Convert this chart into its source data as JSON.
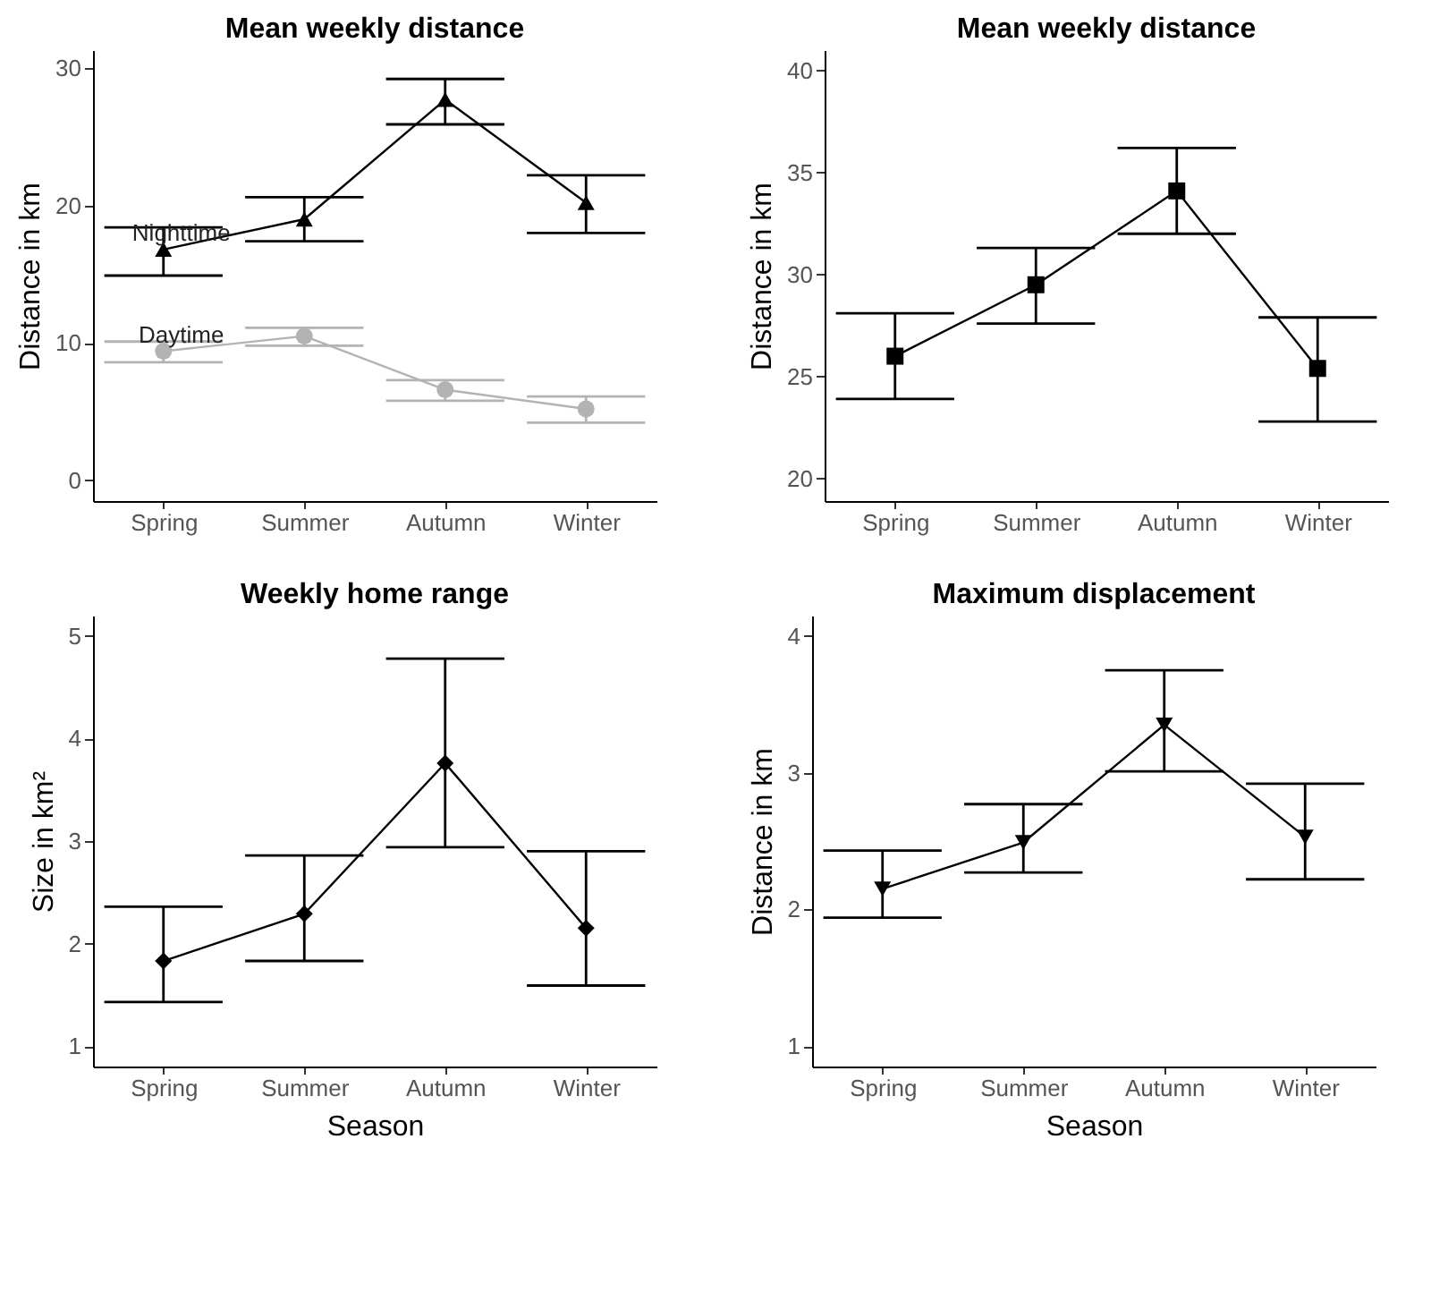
{
  "chart_data": [
    {
      "type": "line",
      "title": "Mean weekly distance",
      "ylabel": "Distance in km",
      "categories": [
        "Spring",
        "Summer",
        "Autumn",
        "Winter"
      ],
      "ylim": [
        -1.5,
        31.3
      ],
      "yticks": [
        0,
        10,
        20,
        30
      ],
      "series": [
        {
          "name": "Nighttime",
          "color": "#000000",
          "marker": "triangle",
          "values": [
            16.8,
            19.0,
            27.7,
            20.2
          ],
          "errors": [
            [
              14.9,
              18.4
            ],
            [
              17.4,
              20.6
            ],
            [
              25.9,
              29.2
            ],
            [
              18.0,
              22.2
            ]
          ]
        },
        {
          "name": "Daytime",
          "color": "#b3b3b3",
          "marker": "circle",
          "values": [
            9.4,
            10.5,
            6.6,
            5.2
          ],
          "errors": [
            [
              8.6,
              10.1
            ],
            [
              9.8,
              11.1
            ],
            [
              5.8,
              7.3
            ],
            [
              4.2,
              6.1
            ]
          ]
        }
      ]
    },
    {
      "type": "line",
      "title": "Mean weekly distance",
      "ylabel": "Distance in km",
      "categories": [
        "Spring",
        "Summer",
        "Autumn",
        "Winter"
      ],
      "ylim": [
        18.9,
        41.0
      ],
      "yticks": [
        20,
        25,
        30,
        35,
        40
      ],
      "marker": "square",
      "series": [
        {
          "color": "#000000",
          "values": [
            26.0,
            29.5,
            34.1,
            25.4
          ],
          "errors": [
            [
              23.9,
              28.1
            ],
            [
              27.6,
              31.3
            ],
            [
              32.0,
              36.2
            ],
            [
              22.8,
              27.9
            ]
          ]
        }
      ]
    },
    {
      "type": "line",
      "title": "Weekly home range",
      "xlabel": "Season",
      "ylabel": "Size in km²",
      "categories": [
        "Spring",
        "Summer",
        "Autumn",
        "Winter"
      ],
      "ylim": [
        0.8,
        5.2
      ],
      "yticks": [
        1,
        2,
        3,
        4,
        5
      ],
      "grid": false,
      "marker": "diamond",
      "series": [
        {
          "color": "#000000",
          "values": [
            1.83,
            2.29,
            3.76,
            2.15
          ],
          "errors": [
            [
              1.43,
              2.36
            ],
            [
              1.83,
              2.86
            ],
            [
              2.94,
              4.78
            ],
            [
              1.59,
              2.9
            ]
          ]
        }
      ]
    },
    {
      "type": "line",
      "title": "Maximum displacement",
      "xlabel": "Season",
      "ylabel": "Distance in km",
      "categories": [
        "Spring",
        "Summer",
        "Autumn",
        "Winter"
      ],
      "ylim": [
        0.85,
        4.15
      ],
      "yticks": [
        1,
        2,
        3,
        4
      ],
      "marker": "triangle-down",
      "series": [
        {
          "color": "#000000",
          "values": [
            2.15,
            2.49,
            3.35,
            2.53
          ],
          "errors": [
            [
              1.94,
              2.43
            ],
            [
              2.27,
              2.77
            ],
            [
              3.01,
              3.75
            ],
            [
              2.22,
              2.92
            ]
          ]
        }
      ]
    }
  ]
}
